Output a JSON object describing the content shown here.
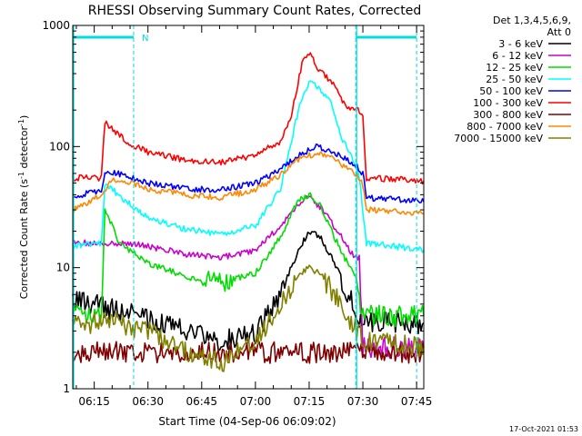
{
  "chart_data": {
    "type": "line",
    "title": "RHESSI Observing Summary Count Rates, Corrected",
    "xlabel": "Start Time (04-Sep-06 06:09:02)",
    "ylabel_main": "Corrected Count Rate (s",
    "ylabel_sup1": "-1",
    "ylabel_mid": " detector",
    "ylabel_sup2": "-1",
    "ylabel_end": ")",
    "y_scale": "log",
    "ylim": [
      1,
      1000
    ],
    "xlim": [
      "06:09",
      "07:47"
    ],
    "x_tick_labels": [
      "06:15",
      "06:30",
      "06:45",
      "07:00",
      "07:15",
      "07:30",
      "07:45"
    ],
    "y_tick_labels": [
      "1",
      "10",
      "100",
      "1000"
    ],
    "legend_header": [
      "Det 1,3,4,5,6,9,",
      "Att 0"
    ],
    "legend_position": "right",
    "flag_label": "N",
    "timestamp": "17-Oct-2021 01:53",
    "flag_segments": [
      [
        "06:09",
        "06:26"
      ],
      [
        "07:28",
        "07:45"
      ]
    ],
    "dashed_markers": [
      "06:26",
      "07:28",
      "07:45"
    ],
    "series": [
      {
        "name": "3 - 6 keV",
        "color": "#000000",
        "points": [
          [
            "06:09",
            5.5
          ],
          [
            "06:20",
            4.5
          ],
          [
            "06:30",
            3.8
          ],
          [
            "06:40",
            3.0
          ],
          [
            "06:50",
            2.5
          ],
          [
            "07:00",
            2.8
          ],
          [
            "07:07",
            6
          ],
          [
            "07:12",
            14
          ],
          [
            "07:15",
            20
          ],
          [
            "07:18",
            18
          ],
          [
            "07:22",
            11
          ],
          [
            "07:26",
            6
          ],
          [
            "07:29",
            3.5
          ],
          [
            "07:30",
            3.5
          ],
          [
            "07:47",
            3.5
          ]
        ]
      },
      {
        "name": "6 - 12 keV",
        "color": "#cc00cc",
        "points": [
          [
            "06:09",
            16
          ],
          [
            "06:18",
            16
          ],
          [
            "06:24",
            16
          ],
          [
            "06:30",
            15
          ],
          [
            "06:40",
            13
          ],
          [
            "06:50",
            12
          ],
          [
            "07:00",
            14
          ],
          [
            "07:07",
            22
          ],
          [
            "07:12",
            34
          ],
          [
            "07:15",
            38
          ],
          [
            "07:18",
            32
          ],
          [
            "07:22",
            22
          ],
          [
            "07:27",
            13
          ],
          [
            "07:29",
            12
          ],
          [
            "07:30",
            2.2
          ],
          [
            "07:47",
            2.2
          ]
        ]
      },
      {
        "name": "12 - 25 keV",
        "color": "#00dd00",
        "points": [
          [
            "06:09",
            4
          ],
          [
            "06:17",
            4
          ],
          [
            "06:18",
            30
          ],
          [
            "06:22",
            16
          ],
          [
            "06:30",
            11
          ],
          [
            "06:40",
            8.5
          ],
          [
            "06:50",
            7.5
          ],
          [
            "07:00",
            9
          ],
          [
            "07:07",
            18
          ],
          [
            "07:12",
            36
          ],
          [
            "07:15",
            40
          ],
          [
            "07:18",
            33
          ],
          [
            "07:22",
            18
          ],
          [
            "07:28",
            8
          ],
          [
            "07:29",
            5
          ],
          [
            "07:30",
            4
          ],
          [
            "07:47",
            4
          ]
        ]
      },
      {
        "name": "25 - 50 keV",
        "color": "#00ffff",
        "points": [
          [
            "06:09",
            15
          ],
          [
            "06:17",
            16
          ],
          [
            "06:18",
            50
          ],
          [
            "06:24",
            35
          ],
          [
            "06:30",
            26
          ],
          [
            "06:40",
            21
          ],
          [
            "06:50",
            19
          ],
          [
            "07:00",
            22
          ],
          [
            "07:07",
            45
          ],
          [
            "07:12",
            200
          ],
          [
            "07:15",
            350
          ],
          [
            "07:18",
            300
          ],
          [
            "07:21",
            230
          ],
          [
            "07:24",
            120
          ],
          [
            "07:28",
            70
          ],
          [
            "07:29",
            55
          ],
          [
            "07:31",
            16
          ],
          [
            "07:47",
            14
          ]
        ]
      },
      {
        "name": "50 - 100 keV",
        "color": "#0000ff",
        "points": [
          [
            "06:09",
            38
          ],
          [
            "06:17",
            44
          ],
          [
            "06:18",
            62
          ],
          [
            "06:24",
            58
          ],
          [
            "06:30",
            50
          ],
          [
            "06:40",
            45
          ],
          [
            "06:50",
            44
          ],
          [
            "07:00",
            50
          ],
          [
            "07:07",
            65
          ],
          [
            "07:12",
            85
          ],
          [
            "07:17",
            100
          ],
          [
            "07:22",
            90
          ],
          [
            "07:28",
            70
          ],
          [
            "07:30",
            60
          ],
          [
            "07:31",
            38
          ],
          [
            "07:47",
            35
          ]
        ]
      },
      {
        "name": "100 - 300 keV",
        "color": "#ff0000",
        "points": [
          [
            "06:09",
            55
          ],
          [
            "06:17",
            55
          ],
          [
            "06:18",
            160
          ],
          [
            "06:24",
            110
          ],
          [
            "06:30",
            90
          ],
          [
            "06:40",
            78
          ],
          [
            "06:50",
            74
          ],
          [
            "07:00",
            85
          ],
          [
            "07:07",
            110
          ],
          [
            "07:10",
            180
          ],
          [
            "07:13",
            480
          ],
          [
            "07:15",
            600
          ],
          [
            "07:18",
            420
          ],
          [
            "07:21",
            350
          ],
          [
            "07:25",
            220
          ],
          [
            "07:29",
            200
          ],
          [
            "07:30",
            170
          ],
          [
            "07:31",
            55
          ],
          [
            "07:47",
            52
          ]
        ]
      },
      {
        "name": "300 - 800 keV",
        "color": "#800000",
        "points": [
          [
            "06:09",
            2
          ],
          [
            "06:47",
            2
          ],
          [
            "07:47",
            2
          ]
        ]
      },
      {
        "name": "800 - 7000 keV",
        "color": "#ff8800",
        "points": [
          [
            "06:09",
            30
          ],
          [
            "06:17",
            40
          ],
          [
            "06:20",
            52
          ],
          [
            "06:25",
            50
          ],
          [
            "06:30",
            45
          ],
          [
            "06:40",
            40
          ],
          [
            "06:50",
            38
          ],
          [
            "07:00",
            44
          ],
          [
            "07:07",
            58
          ],
          [
            "07:12",
            78
          ],
          [
            "07:17",
            88
          ],
          [
            "07:22",
            78
          ],
          [
            "07:28",
            60
          ],
          [
            "07:30",
            48
          ],
          [
            "07:31",
            30
          ],
          [
            "07:47",
            28
          ]
        ]
      },
      {
        "name": "7000 - 15000 keV",
        "color": "#808000",
        "points": [
          [
            "06:09",
            3.5
          ],
          [
            "06:20",
            3.5
          ],
          [
            "06:30",
            3.0
          ],
          [
            "06:40",
            2.0
          ],
          [
            "06:50",
            1.6
          ],
          [
            "07:00",
            2.5
          ],
          [
            "07:07",
            5
          ],
          [
            "07:12",
            8.5
          ],
          [
            "07:15",
            10
          ],
          [
            "07:18",
            9
          ],
          [
            "07:22",
            6
          ],
          [
            "07:26",
            4
          ],
          [
            "07:29",
            2.8
          ],
          [
            "07:30",
            2.5
          ],
          [
            "07:47",
            2.2
          ]
        ]
      }
    ]
  }
}
